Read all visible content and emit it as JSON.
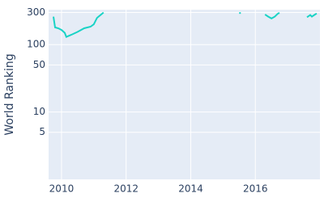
{
  "chart_data": {
    "type": "line",
    "y_label": "World Ranking",
    "x": [
      2009.75,
      2009.8,
      2009.9,
      2010.0,
      2010.1,
      2010.15,
      2010.3,
      2010.5,
      2010.7,
      2010.9,
      2011.0,
      2011.1,
      2011.3,
      null,
      2015.5,
      2015.55,
      null,
      2016.3,
      2016.4,
      2016.5,
      2016.6,
      2016.7,
      2016.75,
      null,
      2017.6,
      2017.7,
      2017.75,
      2017.85,
      2017.9
    ],
    "series": [
      {
        "name": "World Ranking",
        "color": "#19d3c5",
        "values": [
          260,
          180,
          175,
          165,
          150,
          130,
          140,
          155,
          175,
          185,
          200,
          250,
          300,
          null,
          295,
          295,
          null,
          280,
          260,
          245,
          260,
          290,
          295,
          null,
          255,
          275,
          260,
          280,
          290
        ]
      }
    ],
    "xlim": [
      2009.6,
      2018.0
    ],
    "xticks": [
      2010,
      2012,
      2014,
      2016
    ],
    "ylim": [
      1,
      330
    ],
    "yticks": [
      5,
      10,
      50,
      100,
      300
    ],
    "log_y": true,
    "grid": true
  }
}
